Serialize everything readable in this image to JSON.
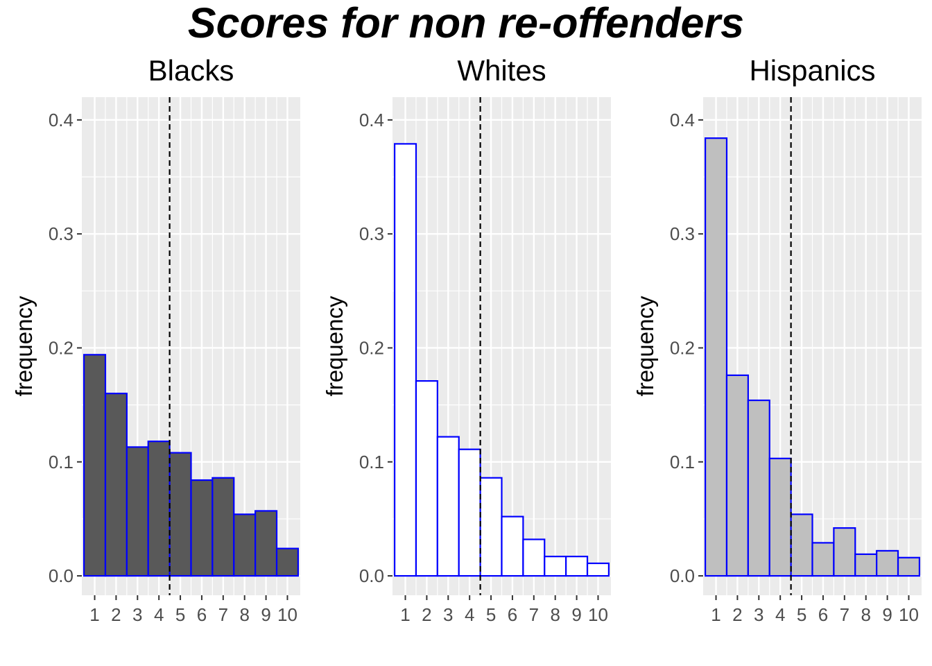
{
  "title": "Scores for non re-offenders",
  "chart_data": [
    {
      "type": "bar",
      "title": "Blacks",
      "xlabel": "",
      "ylabel": "frequency",
      "categories": [
        "1",
        "2",
        "3",
        "4",
        "5",
        "6",
        "7",
        "8",
        "9",
        "10"
      ],
      "values": [
        0.194,
        0.16,
        0.113,
        0.118,
        0.108,
        0.084,
        0.086,
        0.054,
        0.057,
        0.024
      ],
      "ylim": [
        -0.017,
        0.42
      ],
      "yticks": [
        0.0,
        0.1,
        0.2,
        0.3,
        0.4
      ],
      "ytick_labels": [
        "0.0",
        "0.1",
        "0.2",
        "0.3",
        "0.4"
      ],
      "threshold": 4.5,
      "bar_fill": "#595959",
      "bar_stroke": "#0000ff",
      "grid": true
    },
    {
      "type": "bar",
      "title": "Whites",
      "xlabel": "",
      "ylabel": "frequency",
      "categories": [
        "1",
        "2",
        "3",
        "4",
        "5",
        "6",
        "7",
        "8",
        "9",
        "10"
      ],
      "values": [
        0.379,
        0.171,
        0.122,
        0.111,
        0.086,
        0.052,
        0.032,
        0.017,
        0.017,
        0.011
      ],
      "ylim": [
        -0.017,
        0.42
      ],
      "yticks": [
        0.0,
        0.1,
        0.2,
        0.3,
        0.4
      ],
      "ytick_labels": [
        "0.0",
        "0.1",
        "0.2",
        "0.3",
        "0.4"
      ],
      "threshold": 4.5,
      "bar_fill": "#ffffff",
      "bar_stroke": "#0000ff",
      "grid": true
    },
    {
      "type": "bar",
      "title": "Hispanics",
      "xlabel": "",
      "ylabel": "frequency",
      "categories": [
        "1",
        "2",
        "3",
        "4",
        "5",
        "6",
        "7",
        "8",
        "9",
        "10"
      ],
      "values": [
        0.384,
        0.176,
        0.154,
        0.103,
        0.054,
        0.029,
        0.042,
        0.019,
        0.022,
        0.016
      ],
      "ylim": [
        -0.017,
        0.42
      ],
      "yticks": [
        0.0,
        0.1,
        0.2,
        0.3,
        0.4
      ],
      "ytick_labels": [
        "0.0",
        "0.1",
        "0.2",
        "0.3",
        "0.4"
      ],
      "threshold": 4.5,
      "bar_fill": "#bfbfbf",
      "bar_stroke": "#0000ff",
      "grid": true
    }
  ],
  "colors": {
    "panel_background": "#ebebeb",
    "grid_line": "#ffffff",
    "threshold_line": "#000000"
  }
}
